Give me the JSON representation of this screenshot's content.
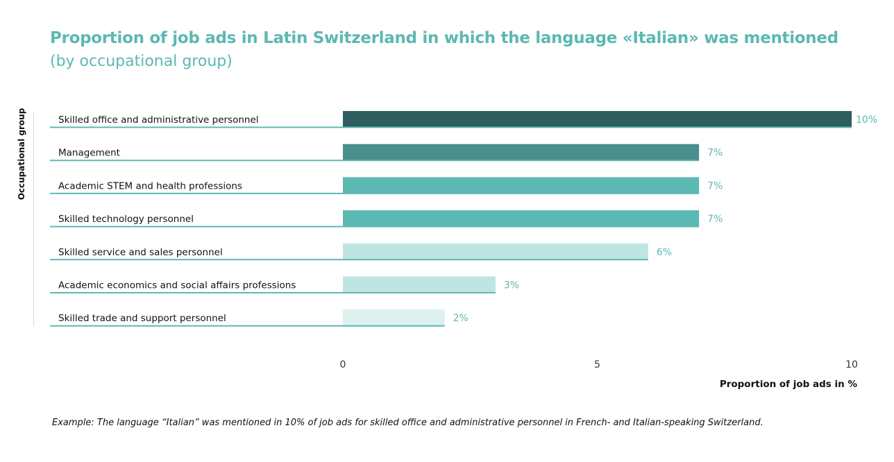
{
  "chart_data": {
    "type": "bar",
    "orientation": "horizontal",
    "title": "Proportion of job ads in Latin Switzerland in which the language «Italian» was mentioned",
    "subtitle": "(by occupational group)",
    "ylabel": "Occupational group",
    "xlabel": "Proportion of job ads in %",
    "xlim": [
      0,
      10
    ],
    "xticks": [
      "0",
      "5",
      "10"
    ],
    "grid": false,
    "categories": [
      "Skilled office and administrative personnel",
      "Management",
      "Academic STEM and health professions",
      "Skilled technology personnel",
      "Skilled service and sales personnel",
      "Academic economics and social affairs professions",
      "Skilled trade and support personnel"
    ],
    "values": [
      10,
      7,
      7,
      7,
      6,
      3,
      2
    ],
    "value_labels": [
      "10%",
      "7%",
      "7%",
      "7%",
      "6%",
      "3%",
      "2%"
    ],
    "colors": [
      "#2f5e5e",
      "#478e8c",
      "#5cb8b2",
      "#5cb8b2",
      "#bfe5e2",
      "#bfe5e2",
      "#ddf1ef"
    ],
    "line_color": "#5cb8b2"
  },
  "note": "Example: The language “Italian” was mentioned in 10% of job ads for skilled office and administrative personnel in French- and Italian-speaking Switzerland."
}
